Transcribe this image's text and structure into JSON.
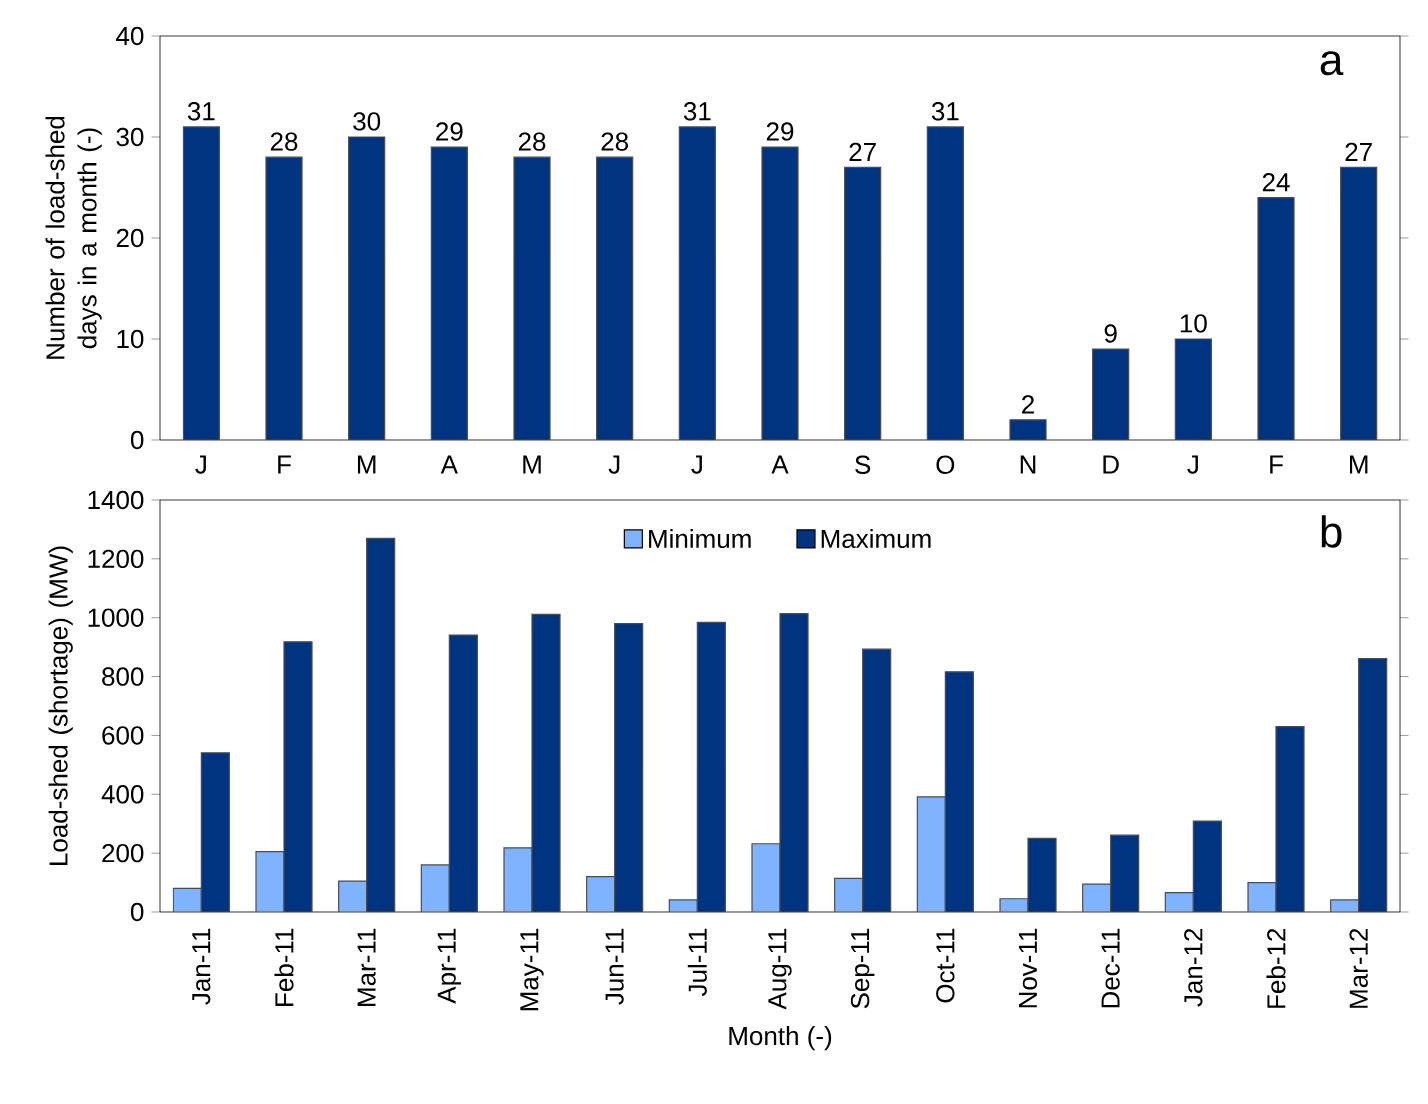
{
  "chart_data": [
    {
      "type": "bar",
      "ylabel": "Number of load-shed days in a month (-)",
      "categories": [
        "J",
        "F",
        "M",
        "A",
        "M",
        "J",
        "J",
        "A",
        "S",
        "O",
        "N",
        "D",
        "J",
        "F",
        "M"
      ],
      "values": [
        31,
        28,
        30,
        29,
        28,
        28,
        31,
        29,
        27,
        31,
        2,
        9,
        10,
        24,
        27
      ],
      "color": "#003380",
      "data_labels": true,
      "ylim": [
        0,
        40
      ],
      "yticks": [
        0,
        10,
        20,
        30,
        40
      ],
      "grid": false,
      "legend": false,
      "annotations": [
        "a"
      ]
    },
    {
      "type": "bar",
      "ylabel": "Load-shed (shortage) (MW)",
      "xlabel": "Month (-)",
      "categories": [
        "Jan-11",
        "Feb-11",
        "Mar-11",
        "Apr-11",
        "May-11",
        "Jun-11",
        "Jul-11",
        "Aug-11",
        "Sep-11",
        "Oct-11",
        "Nov-11",
        "Dec-11",
        "Jan-12",
        "Feb-12",
        "Mar-12"
      ],
      "series": [
        {
          "name": "Minimum",
          "color": "#80b3ff",
          "values": [
            80,
            205,
            105,
            160,
            218,
            120,
            41,
            232,
            114,
            391,
            45,
            95,
            66,
            100,
            41
          ]
        },
        {
          "name": "Maximum",
          "color": "#003380",
          "values": [
            541,
            918,
            1270,
            941,
            1011,
            980,
            984,
            1014,
            893,
            816,
            250,
            261,
            309,
            630,
            861
          ]
        }
      ],
      "ylim": [
        0,
        1400
      ],
      "yticks": [
        0,
        200,
        400,
        600,
        800,
        1000,
        1200,
        1400
      ],
      "grid": false,
      "legend": "top",
      "annotations": [
        "b"
      ]
    }
  ]
}
